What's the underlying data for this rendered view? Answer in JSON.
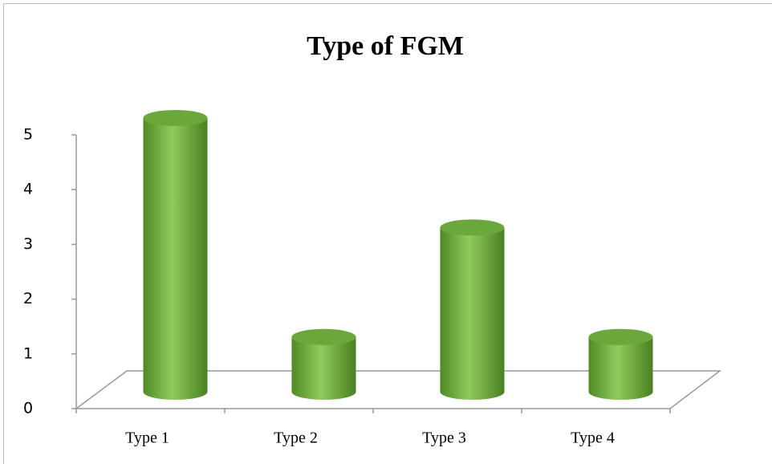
{
  "chart_data": {
    "type": "bar",
    "title": "Type of FGM",
    "categories": [
      "Type 1",
      "Type 2",
      "Type 3",
      "Type 4"
    ],
    "values": [
      5,
      1,
      3,
      1
    ],
    "color": "#7ab648",
    "ylim": [
      0,
      5
    ],
    "yticks": [
      0,
      1,
      2,
      3,
      4,
      5
    ],
    "grid": false
  }
}
